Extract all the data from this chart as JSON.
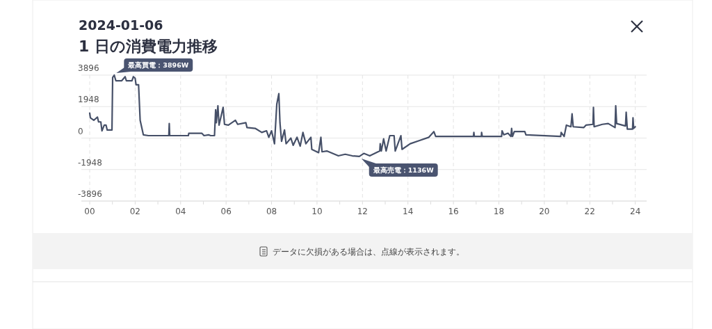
{
  "chart_data": {
    "type": "line",
    "title": "2024-01-06",
    "subtitle": "1 日の消費電力推移",
    "annotations": [
      {
        "text": "最高買電：3896W",
        "x": 1.08,
        "y": 3896
      },
      {
        "text": "最高売電：1136W",
        "x": 11.86,
        "y": -1136
      },
      "データに欠損がある場合は、点線が表示されます。"
    ],
    "x": [
      0,
      0.03,
      0.18,
      0.34,
      0.39,
      0.49,
      0.54,
      0.64,
      0.72,
      0.77,
      0.98,
      1.01,
      1.08,
      1.15,
      1.41,
      1.56,
      1.61,
      1.86,
      1.92,
      2.0,
      2.04,
      2.15,
      2.22,
      2.36,
      2.58,
      3.48,
      3.5,
      3.52,
      4.34,
      4.36,
      4.93,
      5.03,
      5.23,
      5.32,
      5.49,
      5.54,
      5.57,
      5.64,
      5.69,
      5.87,
      5.93,
      6.1,
      6.41,
      6.51,
      6.87,
      6.92,
      7.28,
      7.57,
      7.78,
      7.88,
      8.0,
      8.13,
      8.23,
      8.32,
      8.37,
      8.44,
      8.57,
      8.64,
      8.85,
      8.95,
      9.12,
      9.26,
      9.38,
      9.51,
      9.73,
      9.77,
      10.07,
      10.17,
      10.22,
      10.43,
      10.94,
      11.24,
      11.55,
      11.86,
      12.06,
      12.32,
      12.76,
      12.78,
      12.83,
      12.93,
      13.04,
      13.2,
      13.39,
      13.44,
      13.69,
      13.74,
      14.1,
      14.51,
      14.92,
      15.14,
      15.22,
      15.94,
      16.88,
      16.9,
      16.92,
      17.23,
      17.24,
      17.27,
      18.12,
      18.14,
      18.22,
      18.4,
      18.53,
      18.56,
      18.6,
      18.68,
      19.14,
      19.19,
      20.72,
      20.74,
      20.87,
      20.97,
      21.17,
      21.22,
      21.27,
      21.73,
      21.83,
      22.14,
      22.16,
      22.19,
      22.55,
      22.81,
      23.11,
      23.14,
      23.18,
      23.57,
      23.6,
      23.65,
      23.88,
      23.9,
      23.93,
      24.0
    ],
    "series": [
      {
        "color": "#465068",
        "values": [
          1550,
          1250,
          1100,
          1300,
          1000,
          1000,
          450,
          800,
          800,
          500,
          500,
          3750,
          3896,
          3550,
          3550,
          3800,
          3550,
          3550,
          3800,
          3700,
          3300,
          3300,
          1100,
          200,
          150,
          150,
          900,
          150,
          150,
          300,
          300,
          150,
          200,
          150,
          150,
          1750,
          950,
          2000,
          800,
          1900,
          850,
          800,
          1100,
          850,
          950,
          650,
          600,
          350,
          450,
          50,
          450,
          -350,
          2100,
          2750,
          950,
          -200,
          500,
          -350,
          0,
          -450,
          50,
          -500,
          350,
          -350,
          50,
          -700,
          -900,
          50,
          -850,
          -800,
          -1100,
          -1000,
          -1100,
          -1136,
          -950,
          -1100,
          -800,
          -350,
          -800,
          -50,
          -800,
          150,
          150,
          -800,
          150,
          -700,
          -350,
          -150,
          50,
          400,
          100,
          100,
          100,
          350,
          100,
          100,
          350,
          100,
          100,
          450,
          200,
          300,
          100,
          600,
          100,
          400,
          400,
          200,
          100,
          350,
          100,
          800,
          700,
          1500,
          700,
          650,
          800,
          850,
          1900,
          700,
          850,
          900,
          650,
          2000,
          900,
          750,
          1600,
          550,
          550,
          1250,
          600,
          700
        ]
      }
    ],
    "xlim": [
      0,
      24.5
    ],
    "ylim": [
      -3896,
      3896
    ],
    "xticks": [
      {
        "value": 0,
        "label": "00"
      },
      {
        "value": 1,
        "label": null
      },
      {
        "value": 2,
        "label": "02"
      },
      {
        "value": 3,
        "label": null
      },
      {
        "value": 4,
        "label": "04"
      },
      {
        "value": 5,
        "label": null
      },
      {
        "value": 6,
        "label": "06"
      },
      {
        "value": 7,
        "label": null
      },
      {
        "value": 8,
        "label": "08"
      },
      {
        "value": 9,
        "label": null
      },
      {
        "value": 10,
        "label": "10"
      },
      {
        "value": 11,
        "label": null
      },
      {
        "value": 12,
        "label": "12"
      },
      {
        "value": 13,
        "label": null
      },
      {
        "value": 14,
        "label": "14"
      },
      {
        "value": 15,
        "label": null
      },
      {
        "value": 16,
        "label": "16"
      },
      {
        "value": 17,
        "label": null
      },
      {
        "value": 18,
        "label": "18"
      },
      {
        "value": 19,
        "label": null
      },
      {
        "value": 20,
        "label": "20"
      },
      {
        "value": 21,
        "label": null
      },
      {
        "value": 22,
        "label": "22"
      },
      {
        "value": 23,
        "label": null
      },
      {
        "value": 24,
        "label": "24"
      }
    ],
    "yticks": [
      -3896,
      -1948,
      0,
      1948,
      3896
    ],
    "grid": true,
    "marker": "none",
    "line_style": "solid"
  }
}
